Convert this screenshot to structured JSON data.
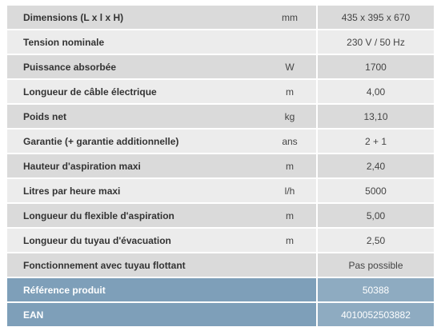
{
  "specs": [
    {
      "label": "Dimensions (L x l x H)",
      "unit": "mm",
      "value": "435 x 395 x 670"
    },
    {
      "label": "Tension nominale",
      "unit": "",
      "value": "230 V / 50 Hz"
    },
    {
      "label": "Puissance absorbée",
      "unit": "W",
      "value": "1700"
    },
    {
      "label": "Longueur de câble électrique",
      "unit": "m",
      "value": "4,00"
    },
    {
      "label": "Poids net",
      "unit": "kg",
      "value": "13,10"
    },
    {
      "label": "Garantie (+ garantie additionnelle)",
      "unit": "ans",
      "value": "2 + 1"
    },
    {
      "label": "Hauteur d'aspiration maxi",
      "unit": "m",
      "value": "2,40"
    },
    {
      "label": "Litres par heure maxi",
      "unit": "l/h",
      "value": "5000"
    },
    {
      "label": "Longueur du flexible d'aspiration",
      "unit": "m",
      "value": "5,00"
    },
    {
      "label": "Longueur du tuyau d'évacuation",
      "unit": "m",
      "value": "2,50"
    },
    {
      "label": "Fonctionnement avec tuyau flottant",
      "unit": "",
      "value": "Pas possible"
    }
  ],
  "product_ref": {
    "label": "Référence produit",
    "value": "50388"
  },
  "ean": {
    "label": "EAN",
    "value": "4010052503882"
  }
}
